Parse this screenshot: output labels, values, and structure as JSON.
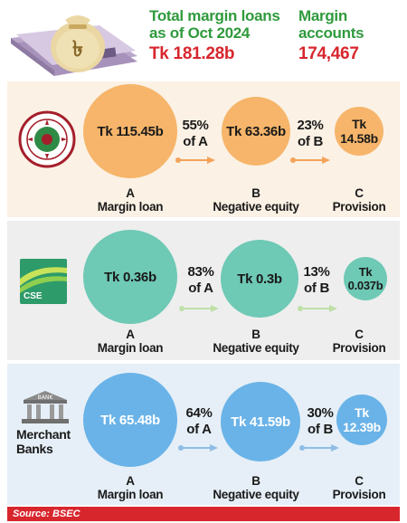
{
  "header": {
    "total_title_line1": "Total margin loans",
    "total_title_line2": "as of Oct 2024",
    "total_value": "Tk 181.28b",
    "accounts_title_line1": "Margin",
    "accounts_title_line2": "accounts",
    "accounts_value": "174,467",
    "bag_symbol": "৳"
  },
  "colors": {
    "green": "#2f9a3d",
    "red": "#d8262d",
    "dse_circle": "#f6b56a",
    "cse_circle": "#6ec9b5",
    "mb_circle": "#6ab3e8"
  },
  "chart_data": [
    {
      "type": "bubble",
      "exchange": "DSE",
      "categories": [
        "Margin loan",
        "Negative equity",
        "Provision"
      ],
      "letters": [
        "A",
        "B",
        "C"
      ],
      "values_bn": [
        115.45,
        63.36,
        14.58
      ],
      "value_labels": [
        "Tk 115.45b",
        "Tk 63.36b",
        "Tk 14.58b"
      ],
      "ratios": [
        "55%",
        "of A",
        "23%",
        "of B"
      ]
    },
    {
      "type": "bubble",
      "exchange": "CSE",
      "logo_text": "CSE",
      "categories": [
        "Margin loan",
        "Negative equity",
        "Provision"
      ],
      "letters": [
        "A",
        "B",
        "C"
      ],
      "values_bn": [
        0.36,
        0.3,
        0.037
      ],
      "value_labels": [
        "Tk 0.36b",
        "Tk 0.3b",
        "Tk 0.037b"
      ],
      "ratios": [
        "83%",
        "of A",
        "13%",
        "of B"
      ]
    },
    {
      "type": "bubble",
      "exchange": "Merchant Banks",
      "logo_text_line1": "Merchant",
      "logo_text_line2": "Banks",
      "logo_bank_text": "BANK",
      "categories": [
        "Margin loan",
        "Negative equity",
        "Provision"
      ],
      "letters": [
        "A",
        "B",
        "C"
      ],
      "values_bn": [
        65.48,
        41.59,
        12.39
      ],
      "value_labels": [
        "Tk 65.48b",
        "Tk 41.59b",
        "Tk 12.39b"
      ],
      "ratios": [
        "64%",
        "of A",
        "30%",
        "of B"
      ]
    }
  ],
  "source": "Source: BSEC"
}
